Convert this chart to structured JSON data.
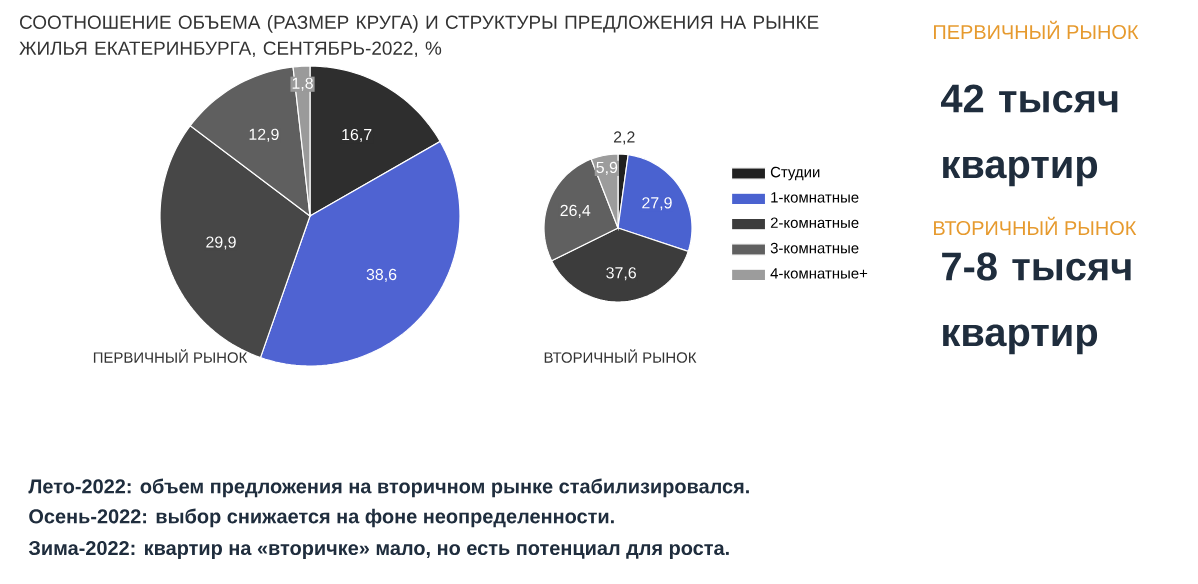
{
  "chart_data": [
    {
      "type": "pie",
      "title": "СООТНОШЕНИЕ ОБЪЕМА (РАЗМЕР КРУГА) И СТРУКТУРЫ ПРЕДЛОЖЕНИЯ НА РЫНКЕ ЖИЛЬЯ ЕКАТЕРИНБУРГА, СЕНТЯБРЬ-2022, %",
      "xlabel": "ПЕРВИЧНЫЙ РЫНОК",
      "categories": [
        null,
        null,
        null,
        null,
        null
      ],
      "values": [
        16.7,
        38.6,
        29.9,
        12.9,
        1.8
      ],
      "value_labels": [
        "16,7",
        "38,6",
        "29,9",
        "12,9",
        "1,8"
      ],
      "colors": [
        "#2e2e2e",
        "#4f63d2",
        "#474747",
        "#5f5f5f",
        "#9a9a9a"
      ]
    },
    {
      "type": "pie",
      "xlabel": "ВТОРИЧНЫЙ РЫНОК",
      "legend": "right",
      "categories": [
        "Студии",
        "1-комнатные",
        "2-комнатные",
        "3-комнатные",
        "4-комнатные+"
      ],
      "values": [
        2.2,
        27.9,
        37.6,
        26.4,
        5.9
      ],
      "value_labels": [
        "2,2",
        "27,9",
        "37,6",
        "26,4",
        "5,9"
      ],
      "colors": [
        "#202020",
        "#4a62d0",
        "#3c3c3c",
        "#606060",
        "#9c9c9c"
      ]
    },
    {
      "type": "other",
      "annotations": [
        "ПЕРВИЧНЫЙ РЫНОК",
        "42 тысяч квартир",
        "ВТОРИЧНЫЙ РЫНОК",
        "7-8 тысяч квартир",
        "Лето-2022: объем предложения на вторичном рынке стабилизировался.",
        "Осень-2022: выбор снижается на фоне неопределенности.",
        "Зима-2022: квартир на «вторичке» мало, но есть потенциал для роста."
      ]
    }
  ]
}
